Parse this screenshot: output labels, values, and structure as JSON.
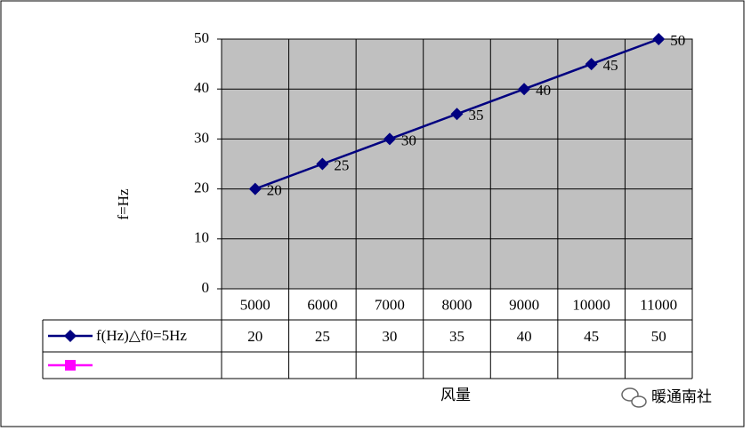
{
  "chart_data": {
    "type": "line",
    "y_label": "f=Hz",
    "x_label": "风量",
    "categories": [
      "5000",
      "6000",
      "7000",
      "8000",
      "9000",
      "10000",
      "11000"
    ],
    "series": [
      {
        "name": "f(Hz)△f0=5Hz",
        "color": "#000080",
        "values": [
          20,
          25,
          30,
          35,
          40,
          45,
          50
        ]
      },
      {
        "color": "#ff00ff",
        "values": [
          null,
          null,
          null,
          null,
          null,
          null,
          null
        ]
      }
    ],
    "ylim": [
      0,
      50
    ],
    "yticks": [
      0,
      10,
      20,
      30,
      40,
      50
    ],
    "grid": true,
    "plot_background": "#c0c0c0"
  },
  "watermark": "暖通南社"
}
